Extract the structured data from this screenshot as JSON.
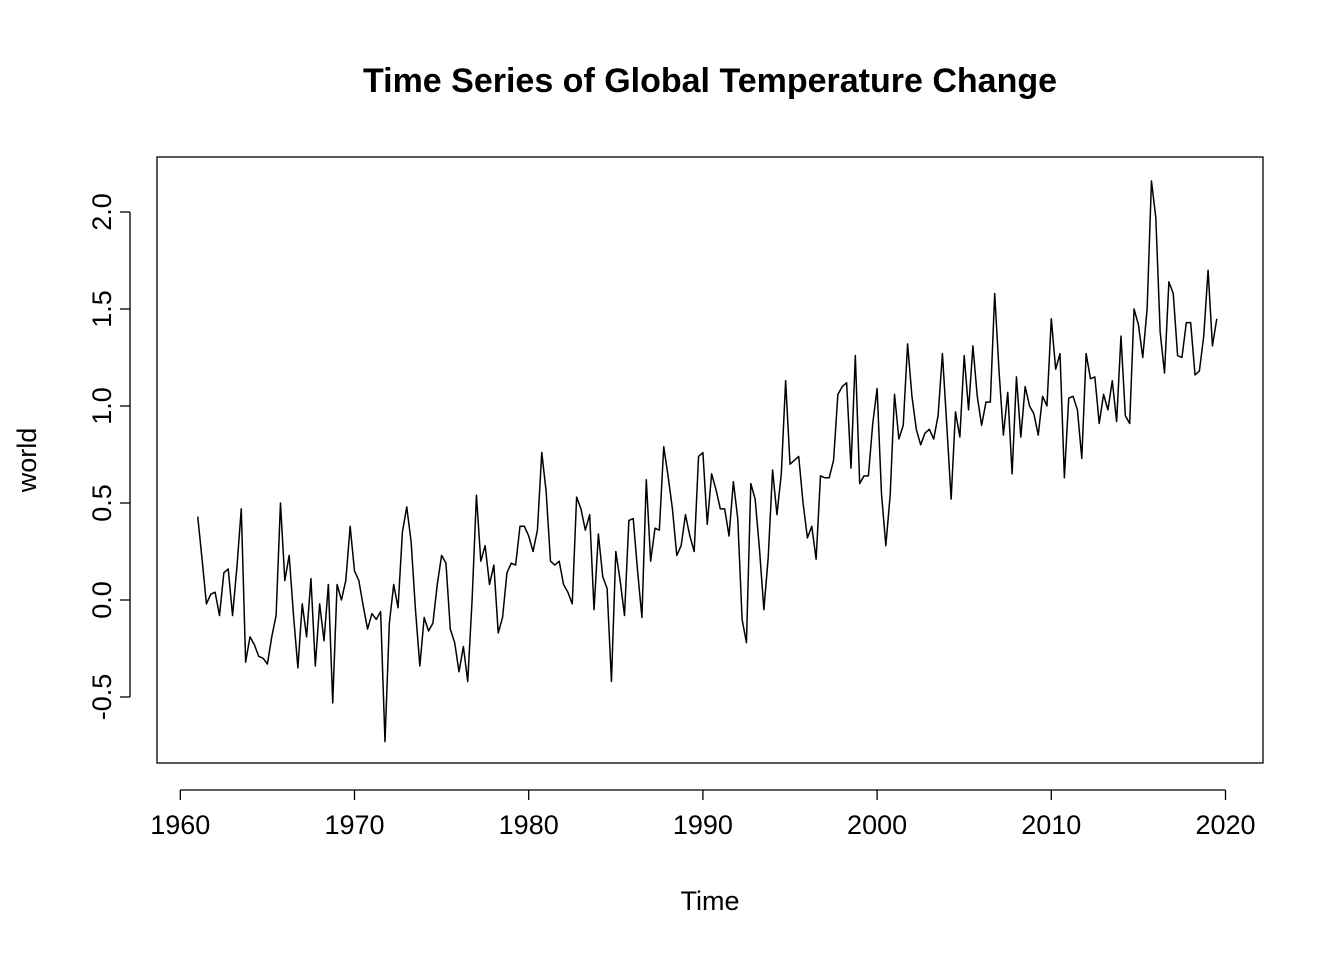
{
  "chart_data": {
    "type": "line",
    "title": "Time Series of Global Temperature Change",
    "xlabel": "Time",
    "ylabel": "world",
    "xlim": [
      1960,
      2020
    ],
    "ylim": [
      -0.5,
      2.0
    ],
    "x_ticks": [
      1960,
      1970,
      1980,
      1990,
      2000,
      2010,
      2020
    ],
    "y_ticks": [
      -0.5,
      0.0,
      0.5,
      1.0,
      1.5,
      2.0
    ],
    "x_tick_labels": [
      "1960",
      "1970",
      "1980",
      "1990",
      "2000",
      "2010",
      "2020"
    ],
    "y_tick_labels": [
      "-0.5",
      "0.0",
      "0.5",
      "1.0",
      "1.5",
      "2.0"
    ],
    "grid": false,
    "legend": "none",
    "frequency": 4,
    "start": 1961.0,
    "series": [
      {
        "color": "#000000",
        "values": [
          0.43,
          0.21,
          -0.02,
          0.03,
          0.04,
          -0.08,
          0.14,
          0.16,
          -0.08,
          0.17,
          0.47,
          -0.32,
          -0.19,
          -0.23,
          -0.29,
          -0.3,
          -0.33,
          -0.19,
          -0.08,
          0.5,
          0.1,
          0.23,
          -0.08,
          -0.35,
          -0.02,
          -0.19,
          0.11,
          -0.34,
          -0.02,
          -0.21,
          0.08,
          -0.53,
          0.08,
          0.0,
          0.1,
          0.38,
          0.15,
          0.1,
          -0.03,
          -0.15,
          -0.07,
          -0.1,
          -0.06,
          -0.73,
          -0.12,
          0.08,
          -0.04,
          0.35,
          0.48,
          0.3,
          -0.05,
          -0.34,
          -0.09,
          -0.16,
          -0.12,
          0.08,
          0.23,
          0.19,
          -0.15,
          -0.22,
          -0.37,
          -0.24,
          -0.42,
          0.0,
          0.54,
          0.2,
          0.28,
          0.08,
          0.18,
          -0.17,
          -0.09,
          0.14,
          0.19,
          0.18,
          0.38,
          0.38,
          0.33,
          0.25,
          0.36,
          0.76,
          0.56,
          0.2,
          0.18,
          0.2,
          0.08,
          0.04,
          -0.02,
          0.53,
          0.47,
          0.36,
          0.44,
          -0.05,
          0.34,
          0.12,
          0.06,
          -0.42,
          0.25,
          0.1,
          -0.08,
          0.41,
          0.42,
          0.15,
          -0.09,
          0.62,
          0.2,
          0.37,
          0.36,
          0.79,
          0.64,
          0.47,
          0.23,
          0.28,
          0.44,
          0.33,
          0.25,
          0.74,
          0.76,
          0.39,
          0.65,
          0.57,
          0.47,
          0.47,
          0.33,
          0.61,
          0.42,
          -0.1,
          -0.22,
          0.6,
          0.52,
          0.26,
          -0.05,
          0.22,
          0.67,
          0.44,
          0.65,
          1.13,
          0.7,
          0.72,
          0.74,
          0.5,
          0.32,
          0.38,
          0.21,
          0.64,
          0.63,
          0.63,
          0.72,
          1.06,
          1.1,
          1.12,
          0.68,
          1.26,
          0.6,
          0.64,
          0.64,
          0.91,
          1.09,
          0.55,
          0.28,
          0.54,
          1.06,
          0.83,
          0.9,
          1.32,
          1.05,
          0.88,
          0.8,
          0.86,
          0.88,
          0.83,
          0.95,
          1.27,
          0.9,
          0.52,
          0.97,
          0.84,
          1.26,
          0.98,
          1.31,
          1.05,
          0.9,
          1.02,
          1.02,
          1.58,
          1.18,
          0.85,
          1.07,
          0.65,
          1.15,
          0.84,
          1.1,
          1.0,
          0.96,
          0.85,
          1.05,
          1.0,
          1.45,
          1.19,
          1.27,
          0.63,
          1.04,
          1.05,
          0.98,
          0.73,
          1.27,
          1.14,
          1.15,
          0.91,
          1.06,
          0.98,
          1.13,
          0.92,
          1.36,
          0.95,
          0.91,
          1.5,
          1.42,
          1.25,
          1.5,
          2.16,
          1.97,
          1.38,
          1.17,
          1.64,
          1.58,
          1.26,
          1.25,
          1.43,
          1.43,
          1.16,
          1.18,
          1.36,
          1.7,
          1.31,
          1.45
        ]
      }
    ]
  }
}
